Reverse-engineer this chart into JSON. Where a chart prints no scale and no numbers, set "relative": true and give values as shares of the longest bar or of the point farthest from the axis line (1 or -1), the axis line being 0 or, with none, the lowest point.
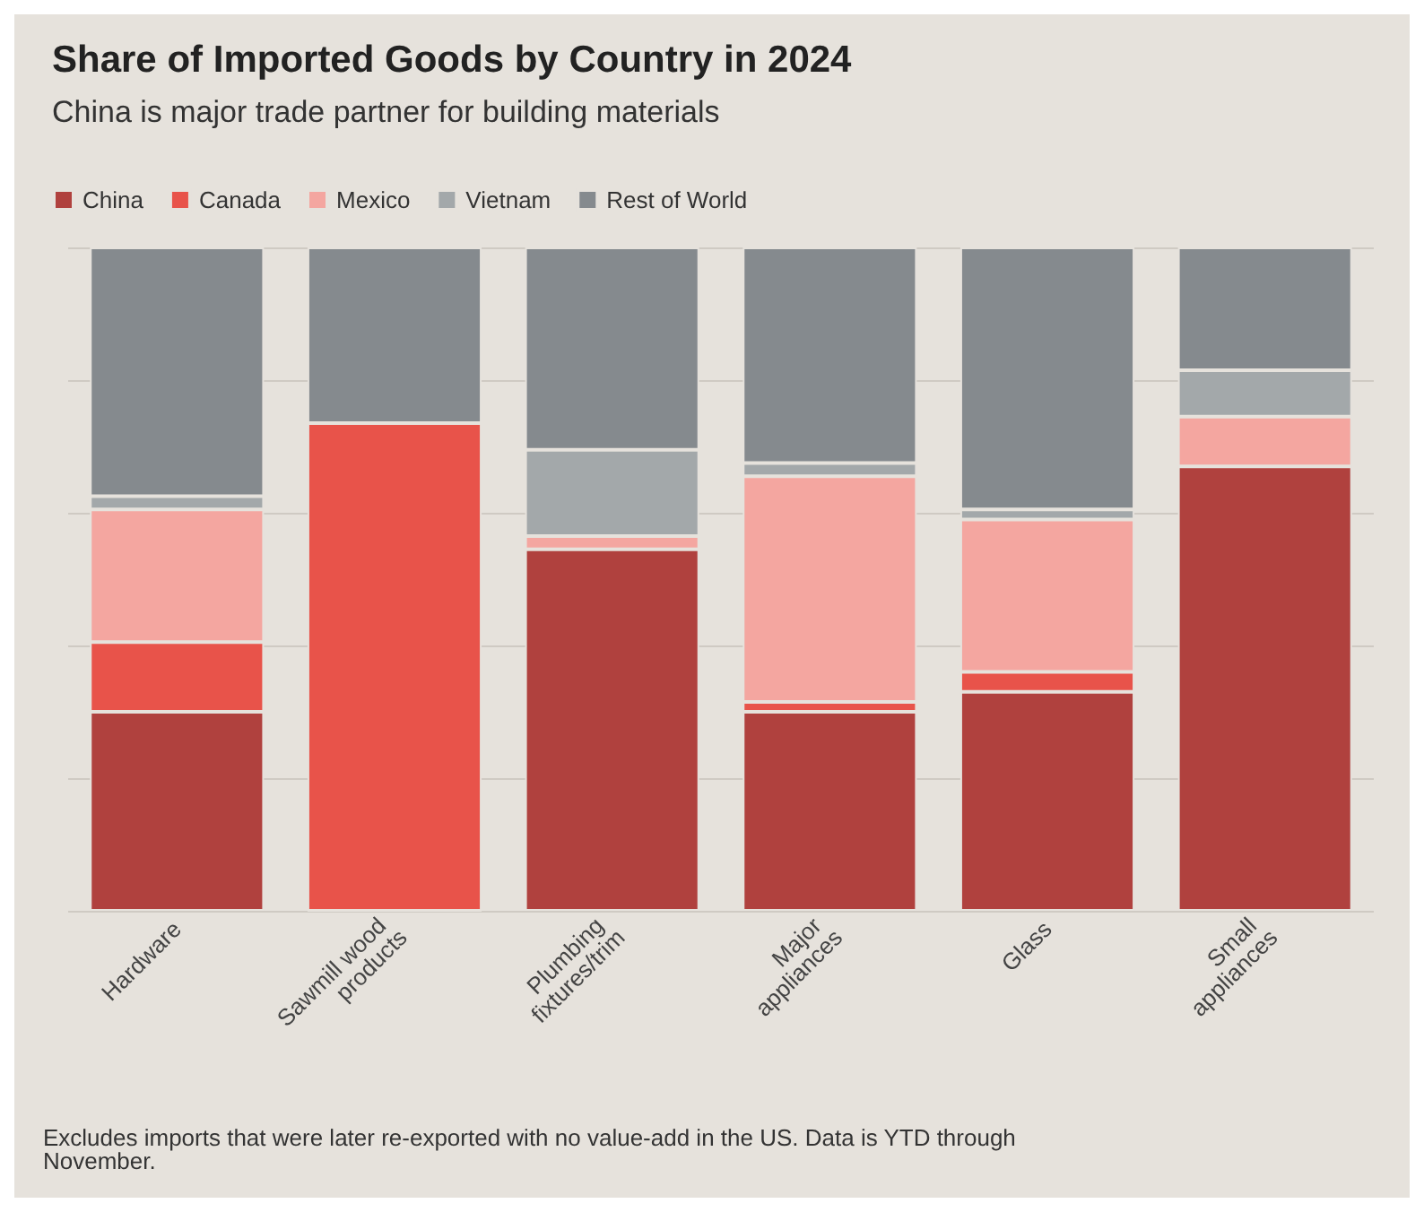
{
  "chart_data": {
    "type": "bar",
    "title": "Share of Imported Goods by Country in 2024",
    "subtitle": "China is major trade partner for building materials",
    "categories": [
      "Hardware",
      "Sawmill wood products",
      "Plumbing fixtures/trim",
      "Major appliances",
      "Glass",
      "Small appliances"
    ],
    "stacked": true,
    "relative": true,
    "grid": "y",
    "legend": "top left",
    "series": [
      {
        "name": "China",
        "color": "#b0413e",
        "values": [
          0.3,
          0,
          0.545,
          0.3,
          0.33,
          0.67
        ]
      },
      {
        "name": "Canada",
        "color": "#e8534a",
        "values": [
          0.105,
          0.735,
          0,
          0.015,
          0.03,
          0
        ]
      },
      {
        "name": "Mexico",
        "color": "#f4a6a0",
        "values": [
          0.2,
          0,
          0.02,
          0.34,
          0.23,
          0.075
        ]
      },
      {
        "name": "Vietnam",
        "color": "#a3a8aa",
        "values": [
          0.02,
          0,
          0.13,
          0.02,
          0.015,
          0.07
        ]
      },
      {
        "name": "Rest of World",
        "color": "#858a8e",
        "values": [
          0.375,
          0.265,
          0.305,
          0.325,
          0.395,
          0.185
        ]
      }
    ],
    "annotations": [
      "Excludes imports that were later re-exported with no value-add in the US. Data is YTD through November."
    ]
  }
}
